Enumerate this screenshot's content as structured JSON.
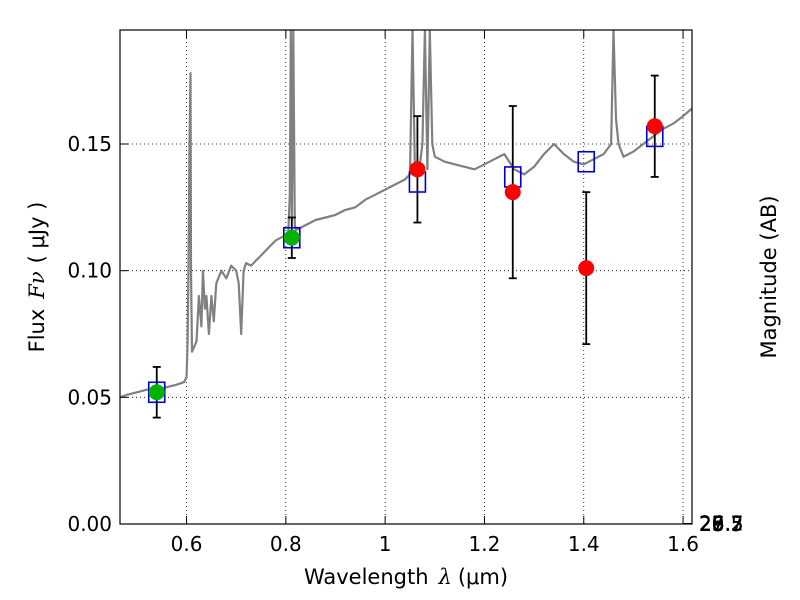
{
  "chart_data": {
    "type": "scatter",
    "title": "",
    "xlabel_prefix": "Wavelength",
    "xlabel_symbol": "λ",
    "xlabel_unit": "(μm)",
    "ylabel_prefix": "Flux",
    "ylabel_symbol": "Fν",
    "ylabel_unit": "( μJy )",
    "y2label": "Magnitude (AB)",
    "xlim": [
      0.466,
      1.618
    ],
    "ylim": [
      0.0,
      0.195
    ],
    "x_ticks": [
      0.6,
      0.8,
      1.0,
      1.2,
      1.4,
      1.6
    ],
    "x_tick_labels": [
      "0.6",
      "0.8",
      "1",
      "1.2",
      "1.4",
      "1.6"
    ],
    "y_ticks": [
      0.0,
      0.05,
      0.1,
      0.15
    ],
    "y_tick_labels": [
      "0.00",
      "0.05",
      "0.10",
      "0.15"
    ],
    "mag_ticks": [
      25.7,
      26,
      26.2,
      26.5,
      27,
      27.5,
      28,
      29
    ],
    "mag_tick_labels": [
      "25.7",
      "26",
      "26.2",
      "26.5",
      "27",
      "27.5",
      "28",
      "29"
    ],
    "grid": true,
    "colors": {
      "model": "#808080",
      "box": "#0000cc",
      "green": "#00b400",
      "red": "#ff0000",
      "errorbar": "#000000"
    },
    "model_sed": [
      [
        0.466,
        0.05
      ],
      [
        0.48,
        0.051
      ],
      [
        0.5,
        0.052
      ],
      [
        0.52,
        0.053
      ],
      [
        0.54,
        0.053
      ],
      [
        0.56,
        0.054
      ],
      [
        0.58,
        0.055
      ],
      [
        0.595,
        0.056
      ],
      [
        0.6,
        0.058
      ],
      [
        0.602,
        0.07
      ],
      [
        0.604,
        0.1
      ],
      [
        0.606,
        0.15
      ],
      [
        0.608,
        0.178
      ],
      [
        0.609,
        0.1
      ],
      [
        0.611,
        0.068
      ],
      [
        0.62,
        0.072
      ],
      [
        0.625,
        0.09
      ],
      [
        0.63,
        0.078
      ],
      [
        0.633,
        0.1
      ],
      [
        0.637,
        0.085
      ],
      [
        0.64,
        0.09
      ],
      [
        0.645,
        0.075
      ],
      [
        0.65,
        0.09
      ],
      [
        0.655,
        0.08
      ],
      [
        0.66,
        0.095
      ],
      [
        0.67,
        0.1
      ],
      [
        0.68,
        0.097
      ],
      [
        0.69,
        0.102
      ],
      [
        0.7,
        0.1
      ],
      [
        0.705,
        0.095
      ],
      [
        0.71,
        0.075
      ],
      [
        0.715,
        0.1
      ],
      [
        0.72,
        0.103
      ],
      [
        0.73,
        0.102
      ],
      [
        0.74,
        0.104
      ],
      [
        0.75,
        0.106
      ],
      [
        0.76,
        0.108
      ],
      [
        0.77,
        0.11
      ],
      [
        0.78,
        0.112
      ],
      [
        0.79,
        0.113
      ],
      [
        0.8,
        0.114
      ],
      [
        0.805,
        0.115
      ],
      [
        0.808,
        0.13
      ],
      [
        0.81,
        0.195
      ],
      [
        0.812,
        0.12
      ],
      [
        0.815,
        0.195
      ],
      [
        0.818,
        0.118
      ],
      [
        0.82,
        0.116
      ],
      [
        0.84,
        0.118
      ],
      [
        0.86,
        0.12
      ],
      [
        0.88,
        0.121
      ],
      [
        0.9,
        0.122
      ],
      [
        0.92,
        0.124
      ],
      [
        0.94,
        0.125
      ],
      [
        0.96,
        0.128
      ],
      [
        0.98,
        0.13
      ],
      [
        1.0,
        0.132
      ],
      [
        1.02,
        0.134
      ],
      [
        1.04,
        0.136
      ],
      [
        1.05,
        0.138
      ],
      [
        1.055,
        0.195
      ],
      [
        1.06,
        0.14
      ],
      [
        1.07,
        0.142
      ],
      [
        1.075,
        0.15
      ],
      [
        1.08,
        0.195
      ],
      [
        1.085,
        0.14
      ],
      [
        1.09,
        0.195
      ],
      [
        1.095,
        0.15
      ],
      [
        1.1,
        0.145
      ],
      [
        1.12,
        0.143
      ],
      [
        1.14,
        0.142
      ],
      [
        1.16,
        0.141
      ],
      [
        1.18,
        0.14
      ],
      [
        1.2,
        0.142
      ],
      [
        1.22,
        0.144
      ],
      [
        1.24,
        0.146
      ],
      [
        1.26,
        0.14
      ],
      [
        1.28,
        0.138
      ],
      [
        1.3,
        0.141
      ],
      [
        1.32,
        0.146
      ],
      [
        1.34,
        0.15
      ],
      [
        1.36,
        0.146
      ],
      [
        1.38,
        0.143
      ],
      [
        1.4,
        0.142
      ],
      [
        1.42,
        0.144
      ],
      [
        1.44,
        0.146
      ],
      [
        1.455,
        0.15
      ],
      [
        1.46,
        0.195
      ],
      [
        1.465,
        0.16
      ],
      [
        1.47,
        0.15
      ],
      [
        1.48,
        0.145
      ],
      [
        1.5,
        0.147
      ],
      [
        1.52,
        0.15
      ],
      [
        1.54,
        0.153
      ],
      [
        1.56,
        0.156
      ],
      [
        1.58,
        0.158
      ],
      [
        1.6,
        0.161
      ],
      [
        1.618,
        0.164
      ]
    ],
    "series": [
      {
        "name": "model_bandpass",
        "marker": "square",
        "points": [
          {
            "x": 0.54,
            "y": 0.052
          },
          {
            "x": 0.812,
            "y": 0.113
          },
          {
            "x": 1.065,
            "y": 0.135
          },
          {
            "x": 1.257,
            "y": 0.137
          },
          {
            "x": 1.405,
            "y": 0.143
          },
          {
            "x": 1.543,
            "y": 0.153
          }
        ]
      },
      {
        "name": "observed_green",
        "marker": "circle",
        "points": [
          {
            "x": 0.54,
            "y": 0.052,
            "yerr_low": 0.042,
            "yerr_high": 0.062
          },
          {
            "x": 0.812,
            "y": 0.113,
            "yerr_low": 0.105,
            "yerr_high": 0.121
          }
        ]
      },
      {
        "name": "observed_red",
        "marker": "circle",
        "points": [
          {
            "x": 1.065,
            "y": 0.14,
            "yerr_low": 0.119,
            "yerr_high": 0.161
          },
          {
            "x": 1.257,
            "y": 0.131,
            "yerr_low": 0.097,
            "yerr_high": 0.165
          },
          {
            "x": 1.405,
            "y": 0.101,
            "yerr_low": 0.071,
            "yerr_high": 0.131
          },
          {
            "x": 1.543,
            "y": 0.157,
            "yerr_low": 0.137,
            "yerr_high": 0.177
          }
        ]
      }
    ]
  }
}
